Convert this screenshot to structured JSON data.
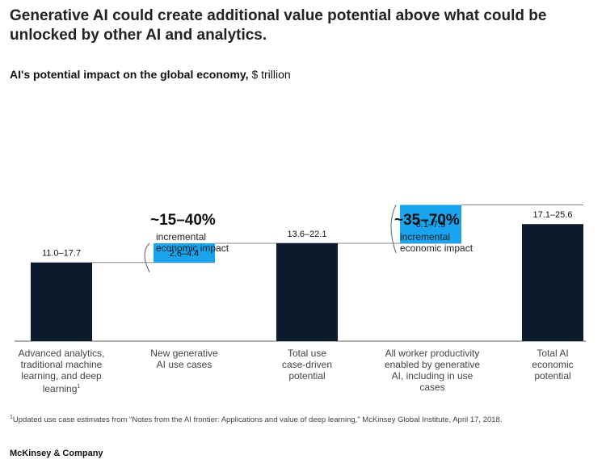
{
  "title": "Generative AI could create additional value potential above what could be unlocked by other AI and analytics.",
  "subtitle_bold": "AI's potential impact on the global economy,",
  "subtitle_unit": "$ trillion",
  "chart_data": {
    "type": "bar",
    "subtype": "waterfall",
    "categories": [
      "Advanced analytics, traditional machine learning, and deep learning",
      "New generative AI use cases",
      "Total use case-driven potential",
      "All worker productivity enabled by generative AI, including in use cases",
      "Total AI economic potential"
    ],
    "labels": [
      "11.0–17.7",
      "2.6–4.4",
      "13.6–22.1",
      "6.1–7.9",
      "17.1–25.6"
    ],
    "ranges": [
      [
        11.0,
        17.7
      ],
      [
        2.6,
        4.4
      ],
      [
        13.6,
        22.1
      ],
      [
        6.1,
        7.9
      ],
      [
        17.1,
        25.6
      ]
    ],
    "kinds": [
      "total",
      "increment",
      "total",
      "increment",
      "total"
    ],
    "colors": {
      "total": "#0b1b2b",
      "increment": "#1aa3ee"
    },
    "annotations": [
      {
        "value": "~15–40%",
        "text": "incremental economic impact"
      },
      {
        "value": "~35–70%",
        "text": "incremental economic impact"
      }
    ]
  },
  "category_lines": [
    [
      "Advanced analytics,",
      "traditional machine",
      "learning, and deep",
      "learning"
    ],
    [
      "New generative",
      "AI use cases"
    ],
    [
      "Total use",
      "case-driven",
      "potential"
    ],
    [
      "All worker productivity",
      "enabled by generative",
      "AI, including in use",
      "cases"
    ],
    [
      "Total AI",
      "economic",
      "potential"
    ]
  ],
  "annotation_lines": [
    [
      "incremental",
      "economic impact"
    ],
    [
      "incremental",
      "economic impact"
    ]
  ],
  "footnote_mark": "1",
  "footnote": "Updated use case estimates from \"Notes from the AI frontier: Applications and value of deep learning,\" McKinsey Global Institute, April 17, 2018.",
  "brand": "McKinsey & Company"
}
